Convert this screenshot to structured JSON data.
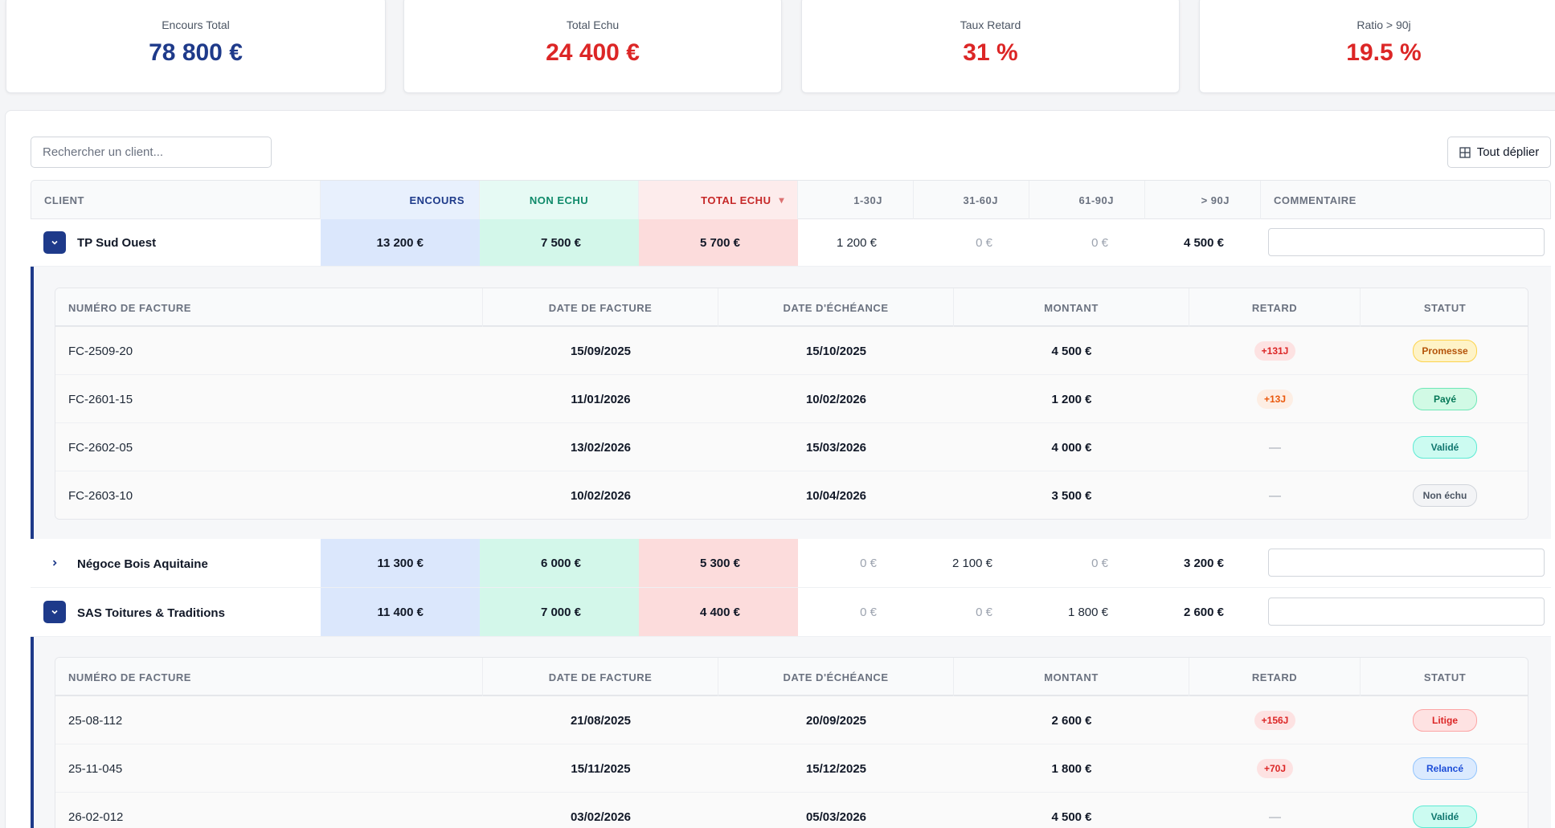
{
  "kpis": [
    {
      "label": "Encours Total",
      "value": "78 800 €",
      "color": "#1e3a8a"
    },
    {
      "label": "Total Echu",
      "value": "24 400 €",
      "color": "#dc2626"
    },
    {
      "label": "Taux Retard",
      "value": "31 %",
      "color": "#dc2626"
    },
    {
      "label": "Ratio > 90j",
      "value": "19.5 %",
      "color": "#dc2626"
    }
  ],
  "search": {
    "placeholder": "Rechercher un client..."
  },
  "expand_all": {
    "label": "Tout déplier",
    "icon": "grid-icon"
  },
  "table": {
    "columns": {
      "client": "CLIENT",
      "encours": "ENCOURS",
      "non_echu": "NON ECHU",
      "total_echu": "TOTAL ECHU",
      "sort_icon": "▾",
      "d1_30": "1-30J",
      "d31_60": "31-60J",
      "d61_90": "61-90J",
      "d90p": "> 90J",
      "comment": "COMMENTAIRE"
    },
    "rows": [
      {
        "client": "TP Sud Ouest",
        "expanded": true,
        "encours": "13 200 €",
        "non_echu": "7 500 €",
        "total_echu": "5 700 €",
        "d1_30": "1 200 €",
        "d31_60": "0 €",
        "d61_90": "0 €",
        "d90p": "4 500 €",
        "comment": ""
      },
      {
        "client": "Négoce Bois Aquitaine",
        "expanded": false,
        "encours": "11 300 €",
        "non_echu": "6 000 €",
        "total_echu": "5 300 €",
        "d1_30": "0 €",
        "d31_60": "2 100 €",
        "d61_90": "0 €",
        "d90p": "3 200 €",
        "comment": ""
      },
      {
        "client": "SAS Toitures & Traditions",
        "expanded": true,
        "encours": "11 400 €",
        "non_echu": "7 000 €",
        "total_echu": "4 400 €",
        "d1_30": "0 €",
        "d31_60": "0 €",
        "d61_90": "1 800 €",
        "d90p": "2 600 €",
        "comment": ""
      }
    ]
  },
  "invoice_columns": {
    "number": "NUMÉRO DE FACTURE",
    "date": "DATE DE FACTURE",
    "due": "DATE D'ÉCHÉANCE",
    "amount": "MONTANT",
    "delay": "RETARD",
    "status": "STATUT"
  },
  "details": [
    {
      "client": "TP Sud Ouest",
      "invoices": [
        {
          "number": "FC-2509-20",
          "date": "15/09/2025",
          "due": "15/10/2025",
          "amount": "4 500 €",
          "delay": "+131J",
          "status": "Promesse"
        },
        {
          "number": "FC-2601-15",
          "date": "11/01/2026",
          "due": "10/02/2026",
          "amount": "1 200 €",
          "delay": "+13J",
          "status": "Payé"
        },
        {
          "number": "FC-2602-05",
          "date": "13/02/2026",
          "due": "15/03/2026",
          "amount": "4 000 €",
          "delay": "—",
          "status": "Validé"
        },
        {
          "number": "FC-2603-10",
          "date": "10/02/2026",
          "due": "10/04/2026",
          "amount": "3 500 €",
          "delay": "—",
          "status": "Non échu"
        }
      ]
    },
    {
      "client": "SAS Toitures & Traditions",
      "invoices": [
        {
          "number": "25-08-112",
          "date": "21/08/2025",
          "due": "20/09/2025",
          "amount": "2 600 €",
          "delay": "+156J",
          "status": "Litige"
        },
        {
          "number": "25-11-045",
          "date": "15/11/2025",
          "due": "15/12/2025",
          "amount": "1 800 €",
          "delay": "+70J",
          "status": "Relancé"
        },
        {
          "number": "26-02-012",
          "date": "03/02/2026",
          "due": "05/03/2026",
          "amount": "4 500 €",
          "delay": "—",
          "status": "Validé"
        }
      ]
    }
  ],
  "status_colors": {
    "Promesse": {
      "bg": "#fef3c7",
      "fg": "#b45309",
      "border": "#fcd34d"
    },
    "Payé": {
      "bg": "#d1fae5",
      "fg": "#047857",
      "border": "#6ee7b7"
    },
    "Validé": {
      "bg": "#ccfbf1",
      "fg": "#0f766e",
      "border": "#5eead4"
    },
    "Non échu": {
      "bg": "#f3f4f6",
      "fg": "#4b5563",
      "border": "#d1d5db"
    },
    "Litige": {
      "bg": "#fee2e2",
      "fg": "#dc2626",
      "border": "#fca5a5"
    },
    "Relancé": {
      "bg": "#dbeafe",
      "fg": "#1d4ed8",
      "border": "#93c5fd"
    }
  }
}
